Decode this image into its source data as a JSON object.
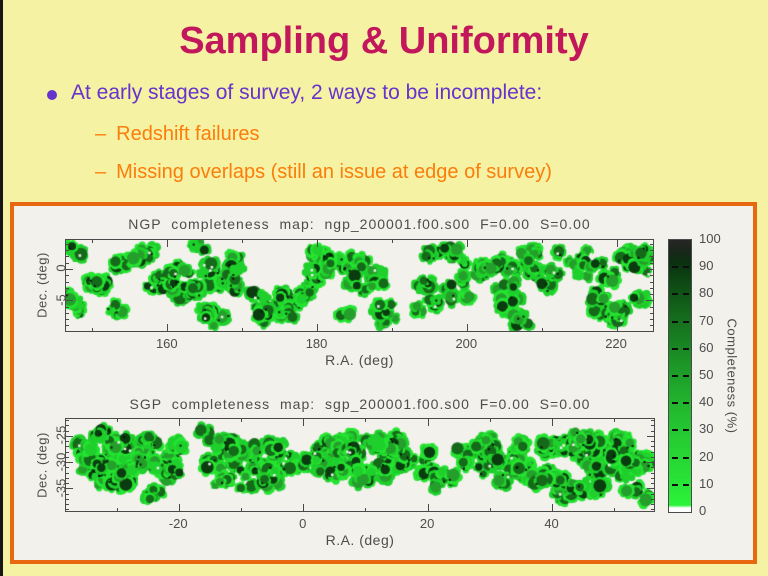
{
  "slide": {
    "title": "Sampling & Uniformity",
    "bullet": "At early stages of survey, 2 ways to be incomplete:",
    "dash": "–",
    "sub_bullets": [
      "Redshift failures",
      "Missing overlaps (still an issue at edge of survey)"
    ],
    "colors": {
      "background": "#f6f2a3",
      "title": "#c2185b",
      "bullet": "#6633cc",
      "sub_bullet": "#fb7d0b",
      "figure_border": "#e8680f",
      "figure_background": "#f2f1ec",
      "plot_ink": "#4a4a4a"
    }
  },
  "chart_data": [
    {
      "type": "scatter",
      "panel": "NGP",
      "title": "NGP completeness map: ngp_200001.f00.s00 F=0.00 S=0.00",
      "xlabel": "R.A. (deg)",
      "ylabel": "Dec. (deg)",
      "xlim": [
        146.4,
        224.8
      ],
      "ylim": [
        -9.8,
        4.7
      ],
      "x_ticks": [
        160,
        180,
        200,
        220
      ],
      "x_minor_step": 10,
      "y_ticks": [
        0,
        -5
      ],
      "y_minor_step": 1,
      "grid": false,
      "coverage_segments": [
        {
          "ra": [
            147,
            224.3
          ],
          "dec": [
            3.5,
            -8.5
          ],
          "density": 1.0
        }
      ],
      "seed": 7
    },
    {
      "type": "scatter",
      "panel": "SGP",
      "title": "SGP completeness map: sgp_200001.f00.s00 F=0.00 S=0.00",
      "xlabel": "R.A. (deg)",
      "ylabel": "Dec. (deg)",
      "xlim": [
        -38.2,
        56.3
      ],
      "ylim": [
        -39.2,
        -21.7
      ],
      "x_ticks": [
        -20,
        0,
        20,
        40
      ],
      "x_minor_step": 10,
      "y_ticks": [
        -25,
        -30,
        -35
      ],
      "y_minor_step": 1,
      "grid": false,
      "coverage_segments": [
        {
          "ra": [
            -37.5,
            55.5
          ],
          "dec": [
            -25.8,
            -32.3
          ],
          "density": 1.1
        },
        {
          "ra": [
            -37,
            -14
          ],
          "dec": [
            -23.8,
            -34.0
          ],
          "density": 0.55
        },
        {
          "ra": [
            -31,
            -23
          ],
          "dec": [
            -32.0,
            -36.3
          ],
          "density": 0.5
        },
        {
          "ra": [
            40,
            55.5
          ],
          "dec": [
            -23.2,
            -37.0
          ],
          "density": 0.85
        },
        {
          "ra": [
            -14,
            40
          ],
          "dec": [
            -31.8,
            -34.2
          ],
          "density": 0.22
        }
      ],
      "seed": 23
    }
  ],
  "colorbar": {
    "label": "Completeness (%)",
    "ticks": [
      0,
      10,
      20,
      30,
      40,
      50,
      60,
      70,
      80,
      90,
      100
    ],
    "range": [
      0,
      100
    ],
    "gradient": [
      {
        "v": 0,
        "c": "#ffffff"
      },
      {
        "v": 1.5,
        "c": "#ffffff"
      },
      {
        "v": 2.5,
        "c": "#2bf33a"
      },
      {
        "v": 12,
        "c": "#28e236"
      },
      {
        "v": 25,
        "c": "#26cf33"
      },
      {
        "v": 40,
        "c": "#22b52e"
      },
      {
        "v": 55,
        "c": "#1c9427"
      },
      {
        "v": 70,
        "c": "#15701d"
      },
      {
        "v": 84,
        "c": "#0e4a14"
      },
      {
        "v": 92,
        "c": "#0a3010"
      },
      {
        "v": 96.5,
        "c": "#1c261c"
      },
      {
        "v": 100,
        "c": "#262626"
      }
    ]
  },
  "map_palette": {
    "bright1": "#25e431",
    "bright2": "#1fd02c",
    "mid": "#259f2b",
    "dark": "#156a1a",
    "vdark": "#0a3c0f",
    "speck": "#031503",
    "pinhole": "#f2f1ec"
  }
}
